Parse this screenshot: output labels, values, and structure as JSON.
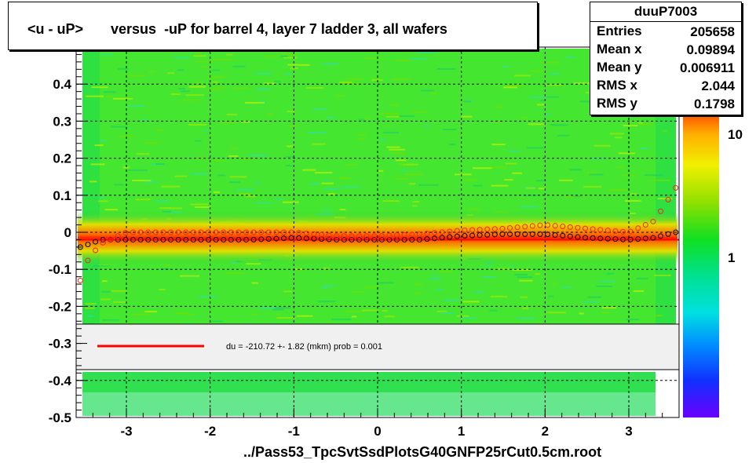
{
  "title": "<u - uP>       versus  -uP for barrel 4, layer 7 ladder 3, all wafers",
  "stats": {
    "name": "duuP7003",
    "rows": [
      {
        "label": "Entries",
        "value": "205658"
      },
      {
        "label": "Mean x",
        "value": "0.09894"
      },
      {
        "label": "Mean y",
        "value": "0.006911"
      },
      {
        "label": "RMS x",
        "value": "2.044"
      },
      {
        "label": "RMS y",
        "value": "0.1798"
      }
    ]
  },
  "fit_legend": "du = -210.72 +-  1.82 (mkm) prob = 0.001",
  "footer": "../Pass53_TpcSvtSsdPlotsG40GNFP25rCut0.5cm.root",
  "colors": {
    "fit_line": "#ff0000",
    "profile_red": "#ff2020",
    "profile_black": "#000000",
    "legend_bg": "#f0f0f0"
  },
  "chart_data": {
    "type": "heatmap",
    "xlim": [
      -3.6,
      3.6
    ],
    "ylim": [
      -0.5,
      0.5
    ],
    "x_ticks": [
      "-3",
      "-2",
      "-1",
      "0",
      "1",
      "2",
      "3"
    ],
    "y_ticks": [
      "-0.5",
      "-0.4",
      "-0.3",
      "-0.2",
      "-0.1",
      "0",
      "0.1",
      "0.2",
      "0.3",
      "0.4"
    ],
    "z_scale": "log",
    "z_ticks": [
      "10",
      "1"
    ],
    "fit_value_mkm": -210.72,
    "profile_mean": {
      "x": [
        -3.55,
        -3.3,
        -3.0,
        -2.5,
        -2.0,
        -1.5,
        -1.0,
        -0.5,
        0.0,
        0.5,
        1.0,
        1.5,
        2.0,
        2.5,
        3.0,
        3.3,
        3.55
      ],
      "y": [
        -0.04,
        -0.02,
        -0.02,
        -0.02,
        -0.02,
        -0.02,
        -0.015,
        -0.02,
        -0.02,
        -0.02,
        -0.01,
        -0.005,
        -0.005,
        -0.015,
        -0.02,
        -0.015,
        0.0
      ]
    },
    "profile_rms": {
      "x": [
        -3.55,
        -3.45,
        -3.3,
        -3.0,
        -2.5,
        -2.0,
        -1.5,
        -1.0,
        -0.5,
        0.0,
        0.5,
        1.0,
        1.5,
        2.0,
        2.5,
        3.0,
        3.3,
        3.45,
        3.55
      ],
      "y": [
        -0.13,
        -0.07,
        -0.03,
        0.0,
        0.0,
        0.0,
        0.0,
        0.0,
        -0.01,
        -0.01,
        -0.005,
        0.005,
        0.01,
        0.02,
        0.01,
        0.0,
        0.03,
        0.08,
        0.12
      ]
    }
  }
}
